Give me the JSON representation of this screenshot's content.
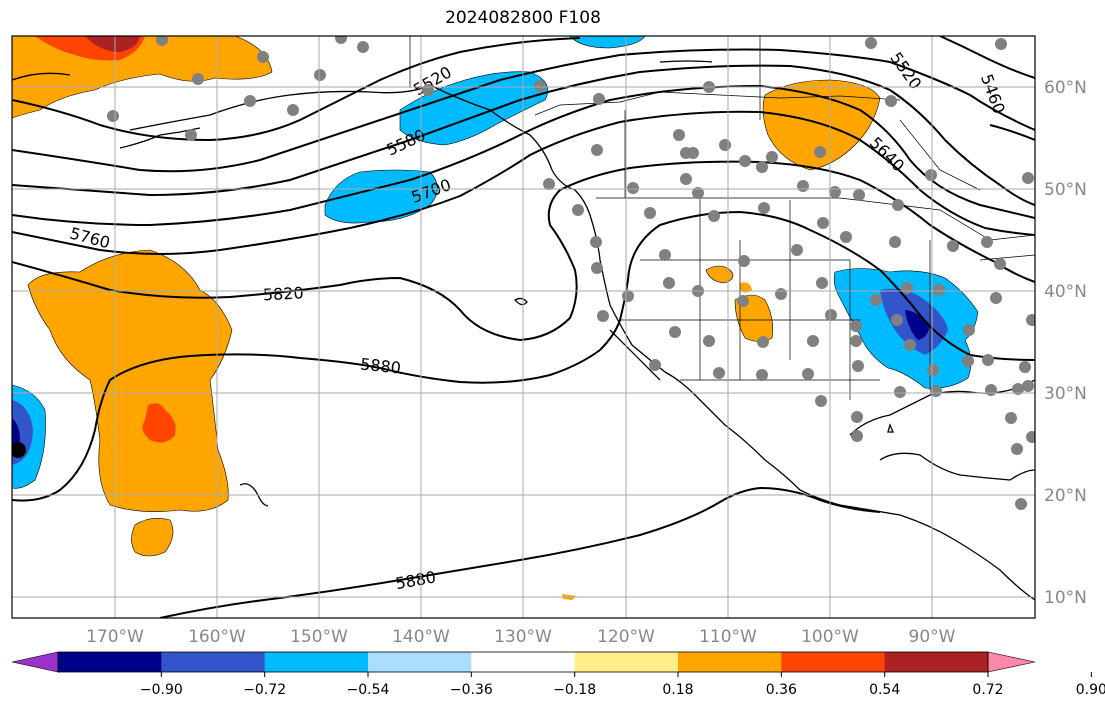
{
  "title": "2024082800 F108",
  "lon_ticks": [
    "170°W",
    "160°W",
    "150°W",
    "140°W",
    "130°W",
    "120°W",
    "110°W",
    "100°W",
    "90°W"
  ],
  "lat_ticks": [
    "60°N",
    "50°N",
    "40°N",
    "30°N",
    "20°N",
    "10°N"
  ],
  "contour_labels": [
    "5520",
    "5580",
    "5700",
    "5760",
    "5820",
    "5880",
    "5880",
    "5640",
    "5520",
    "5460"
  ],
  "colorbar": {
    "colors": [
      "#9933cc",
      "#000088",
      "#3355cc",
      "#00bbff",
      "#aaddff",
      "#ffffff",
      "#ffee88",
      "#ffa500",
      "#ff4400",
      "#aa2222",
      "#ff88aa"
    ],
    "ticks": [
      "−0.90",
      "−0.72",
      "−0.54",
      "−0.36",
      "−0.18",
      "0.18",
      "0.36",
      "0.54",
      "0.72",
      "0.90"
    ]
  },
  "colors": {
    "grid": "#aaaaaa",
    "station": "#808080",
    "contour": "#000000",
    "tick": "#888888"
  }
}
